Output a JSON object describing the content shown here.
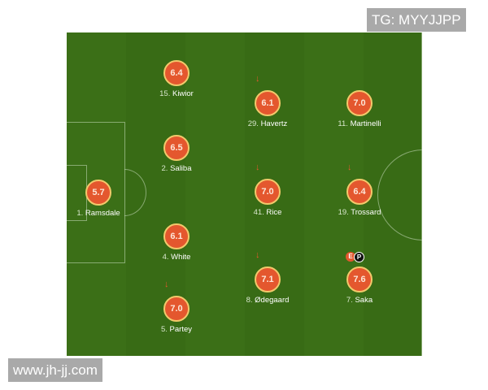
{
  "watermarks": {
    "top_right": "TG: MYYJJPP",
    "bottom_left": "www.jh-jj.com"
  },
  "colors": {
    "pitch": "#3a6e16",
    "rating_bg": "#e4572e",
    "rating_border": "#f2c96b"
  },
  "players": [
    {
      "number": "15.",
      "name": "Kiwior",
      "rating": "6.4",
      "sub_arrow": false,
      "badges": []
    },
    {
      "number": "29.",
      "name": "Havertz",
      "rating": "6.1",
      "sub_arrow": true,
      "badges": []
    },
    {
      "number": "11.",
      "name": "Martinelli",
      "rating": "7.0",
      "sub_arrow": false,
      "badges": []
    },
    {
      "number": "2.",
      "name": "Saliba",
      "rating": "6.5",
      "sub_arrow": false,
      "badges": []
    },
    {
      "number": "1.",
      "name": "Ramsdale",
      "rating": "5.7",
      "sub_arrow": false,
      "badges": []
    },
    {
      "number": "41.",
      "name": "Rice",
      "rating": "7.0",
      "sub_arrow": true,
      "badges": []
    },
    {
      "number": "19.",
      "name": "Trossard",
      "rating": "6.4",
      "sub_arrow": true,
      "badges": []
    },
    {
      "number": "4.",
      "name": "White",
      "rating": "6.1",
      "sub_arrow": false,
      "badges": []
    },
    {
      "number": "8.",
      "name": "Ødegaard",
      "rating": "7.1",
      "sub_arrow": true,
      "badges": []
    },
    {
      "number": "7.",
      "name": "Saka",
      "rating": "7.6",
      "sub_arrow": false,
      "badges": [
        "E",
        "P"
      ]
    },
    {
      "number": "5.",
      "name": "Partey",
      "rating": "7.0",
      "sub_arrow": true,
      "badges": []
    }
  ],
  "icons": {
    "sub_arrow": "arrow-down-icon"
  }
}
